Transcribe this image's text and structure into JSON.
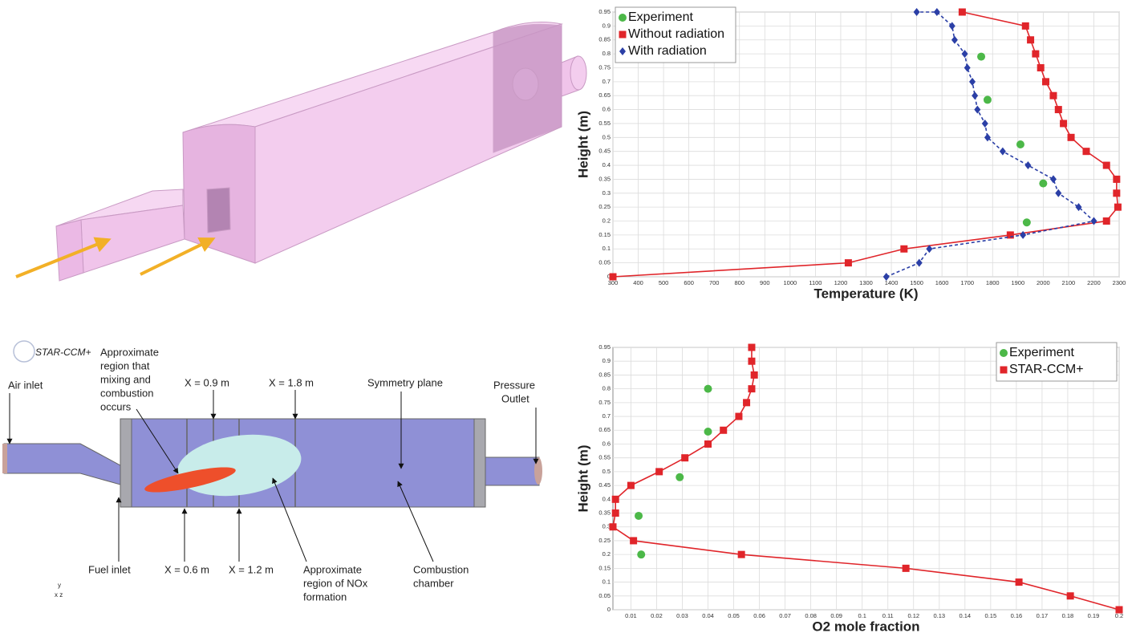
{
  "chart_data": [
    {
      "type": "line",
      "x_label": "Temperature (K)",
      "y_label": "Height (m)",
      "xlim": [
        300,
        2300
      ],
      "ylim": [
        0,
        0.95
      ],
      "xticks": [
        300,
        400,
        500,
        600,
        700,
        800,
        900,
        1000,
        1100,
        1200,
        1300,
        1400,
        1500,
        1600,
        1700,
        1800,
        1900,
        2000,
        2100,
        2200,
        2300
      ],
      "yticks": [
        0,
        0.05,
        0.1,
        0.15,
        0.2,
        0.25,
        0.3,
        0.35,
        0.4,
        0.45,
        0.5,
        0.55,
        0.6,
        0.65,
        0.7,
        0.75,
        0.8,
        0.85,
        0.9,
        0.95
      ],
      "grid": true,
      "legend": "upper left",
      "series": [
        {
          "name": "Experiment",
          "color": "#4cb848",
          "marker": "circle",
          "line_style": "none",
          "x": [
            1755,
            1780,
            1910,
            2000,
            1935
          ],
          "values": [
            0.79,
            0.635,
            0.475,
            0.335,
            0.195
          ]
        },
        {
          "name": "Without radiation",
          "color": "#e0252a",
          "marker": "square",
          "line_style": "solid",
          "x": [
            300,
            1230,
            1450,
            1870,
            2250,
            2295,
            2290,
            2290,
            2250,
            2170,
            2110,
            2080,
            2060,
            2040,
            2010,
            1990,
            1970,
            1950,
            1930,
            1680
          ],
          "values": [
            0,
            0.05,
            0.1,
            0.15,
            0.2,
            0.25,
            0.3,
            0.35,
            0.4,
            0.45,
            0.5,
            0.55,
            0.6,
            0.65,
            0.7,
            0.75,
            0.8,
            0.85,
            0.9,
            0.95
          ]
        },
        {
          "name": "With radiation",
          "color": "#2b3fa6",
          "marker": "diamond",
          "line_style": "dashed",
          "x": [
            1380,
            1510,
            1550,
            1920,
            2200,
            2140,
            2060,
            2040,
            1940,
            1840,
            1780,
            1770,
            1740,
            1730,
            1720,
            1700,
            1690,
            1650,
            1640,
            1580,
            1500
          ],
          "values": [
            0,
            0.05,
            0.1,
            0.15,
            0.2,
            0.25,
            0.3,
            0.35,
            0.4,
            0.45,
            0.5,
            0.55,
            0.6,
            0.65,
            0.7,
            0.75,
            0.8,
            0.85,
            0.9,
            0.95,
            0.95
          ]
        }
      ]
    },
    {
      "type": "line",
      "x_label": "O2 mole fraction",
      "y_label": "Height (m)",
      "xlim": [
        0.003,
        0.2
      ],
      "ylim": [
        0,
        0.95
      ],
      "xticks": [
        0.01,
        0.02,
        0.03,
        0.04,
        0.05,
        0.06,
        0.07,
        0.08,
        0.09,
        0.1,
        0.11,
        0.12,
        0.13,
        0.14,
        0.15,
        0.16,
        0.17,
        0.18,
        0.19,
        0.2
      ],
      "yticks": [
        0,
        0.05,
        0.1,
        0.15,
        0.2,
        0.25,
        0.3,
        0.35,
        0.4,
        0.45,
        0.5,
        0.55,
        0.6,
        0.65,
        0.7,
        0.75,
        0.8,
        0.85,
        0.9,
        0.95
      ],
      "grid": true,
      "legend": "upper right",
      "series": [
        {
          "name": "Experiment",
          "color": "#4cb848",
          "marker": "circle",
          "line_style": "none",
          "x": [
            0.014,
            0.013,
            0.029,
            0.04,
            0.04
          ],
          "values": [
            0.2,
            0.34,
            0.48,
            0.645,
            0.8
          ]
        },
        {
          "name": "STAR-CCM+",
          "color": "#e0252a",
          "marker": "square",
          "line_style": "solid",
          "x": [
            0.2,
            0.181,
            0.161,
            0.117,
            0.053,
            0.011,
            0.003,
            0.004,
            0.004,
            0.01,
            0.021,
            0.031,
            0.04,
            0.046,
            0.052,
            0.055,
            0.057,
            0.058,
            0.057,
            0.057
          ],
          "values": [
            0,
            0.05,
            0.1,
            0.15,
            0.2,
            0.25,
            0.3,
            0.35,
            0.4,
            0.45,
            0.5,
            0.55,
            0.6,
            0.65,
            0.7,
            0.75,
            0.8,
            0.85,
            0.9,
            0.95
          ]
        }
      ]
    }
  ],
  "diagram": {
    "logo": "STAR-CCM+",
    "labels": [
      {
        "lines": [
          "Approximate",
          "region that",
          "mixing and",
          "combustion",
          "occurs"
        ]
      },
      {
        "lines": [
          "Air inlet"
        ]
      },
      {
        "lines": [
          "X = 0.9 m"
        ]
      },
      {
        "lines": [
          "X = 1.8 m"
        ]
      },
      {
        "lines": [
          "Symmetry plane"
        ]
      },
      {
        "lines": [
          "Pressure",
          "Outlet"
        ]
      },
      {
        "lines": [
          "Fuel inlet"
        ]
      },
      {
        "lines": [
          "X = 0.6 m"
        ]
      },
      {
        "lines": [
          "X = 1.2 m"
        ]
      },
      {
        "lines": [
          "Approximate",
          "region of NOx",
          "formation"
        ]
      },
      {
        "lines": [
          "Combustion",
          "chamber"
        ]
      }
    ]
  }
}
